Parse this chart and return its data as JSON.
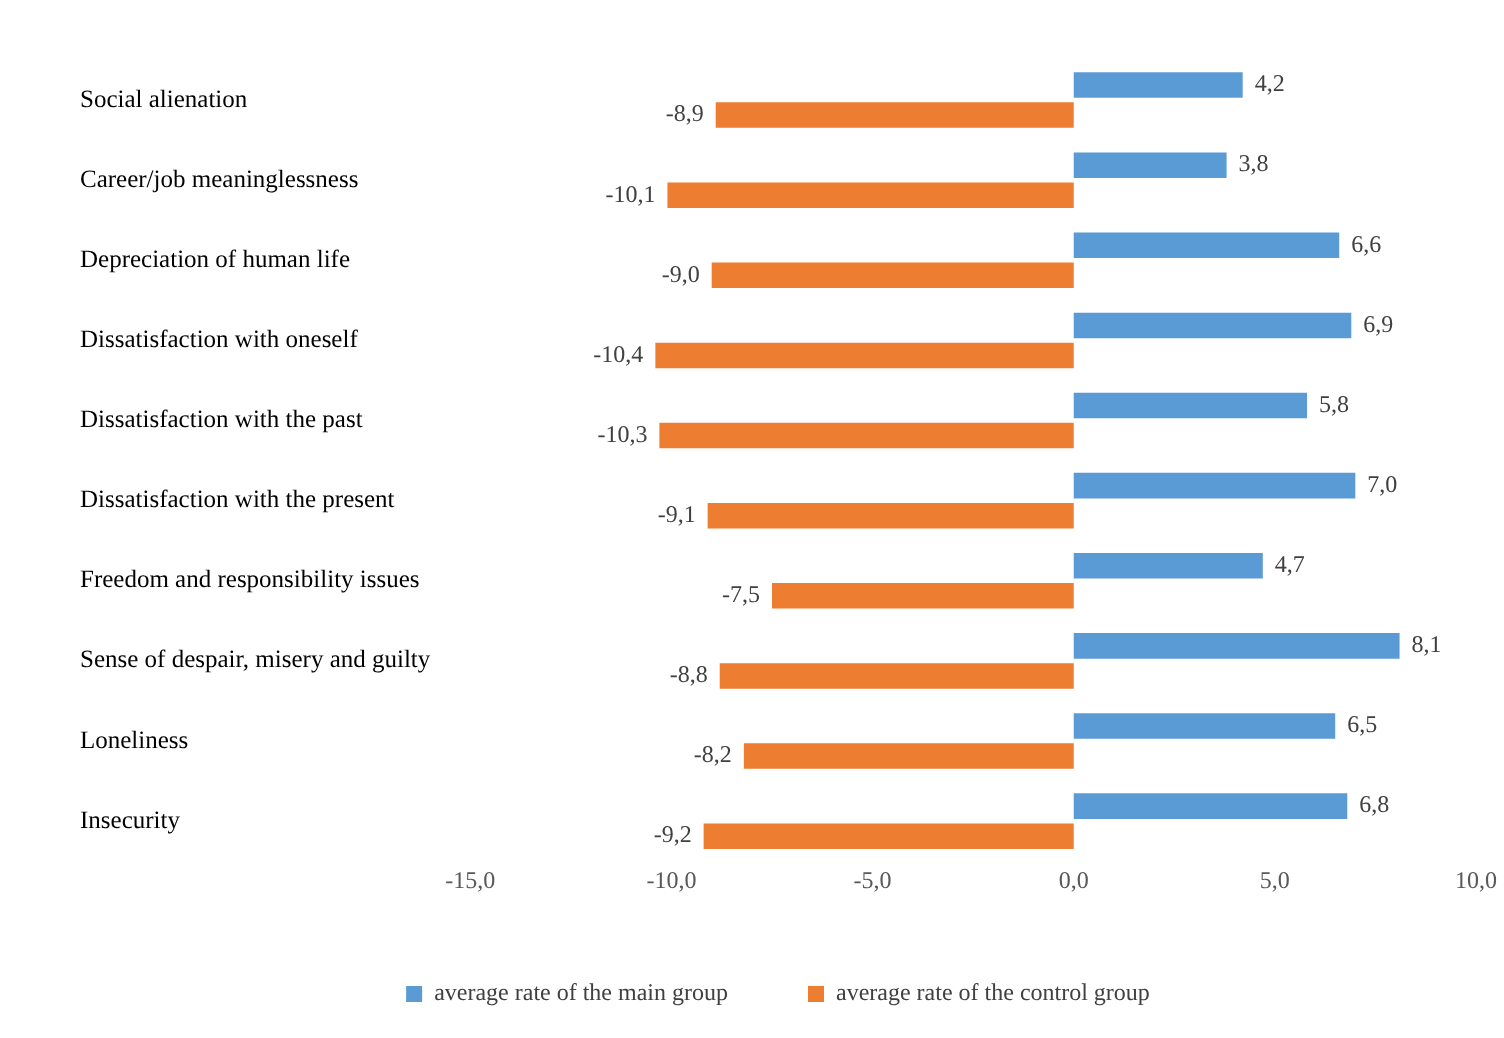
{
  "chart_data": {
    "type": "bar",
    "orientation": "horizontal",
    "categories": [
      "Social alienation",
      "Career/job meaninglessness",
      "Depreciation of human life",
      "Dissatisfaction with oneself",
      "Dissatisfaction with the past",
      "Dissatisfaction with the present",
      "Freedom and responsibility issues",
      "Sense of despair, misery and guilty",
      "Loneliness",
      "Insecurity"
    ],
    "series": [
      {
        "name": "average rate of the main group",
        "color": "#5b9bd5",
        "values": [
          4.2,
          3.8,
          6.6,
          6.9,
          5.8,
          7.0,
          4.7,
          8.1,
          6.5,
          6.8
        ],
        "value_labels": [
          "4,2",
          "3,8",
          "6,6",
          "6,9",
          "5,8",
          "7,0",
          "4,7",
          "8,1",
          "6,5",
          "6,8"
        ]
      },
      {
        "name": "average rate of the control group",
        "color": "#ed7d31",
        "values": [
          -8.9,
          -10.1,
          -9.0,
          -10.4,
          -10.3,
          -9.1,
          -7.5,
          -8.8,
          -8.2,
          -9.2
        ],
        "value_labels": [
          "-8,9",
          "-10,1",
          "-9,0",
          "-10,4",
          "-10,3",
          "-9,1",
          "-7,5",
          "-8,8",
          "-8,2",
          "-9,2"
        ]
      }
    ],
    "xlim": [
      -15,
      10
    ],
    "xticks": [
      {
        "value": -15,
        "label": "-15,0"
      },
      {
        "value": -10,
        "label": "-10,0"
      },
      {
        "value": -5,
        "label": "-5,0"
      },
      {
        "value": 0,
        "label": "0,0"
      },
      {
        "value": 5,
        "label": "5,0"
      },
      {
        "value": 10,
        "label": "10,0"
      }
    ],
    "grid": false,
    "legend": "bottom"
  }
}
